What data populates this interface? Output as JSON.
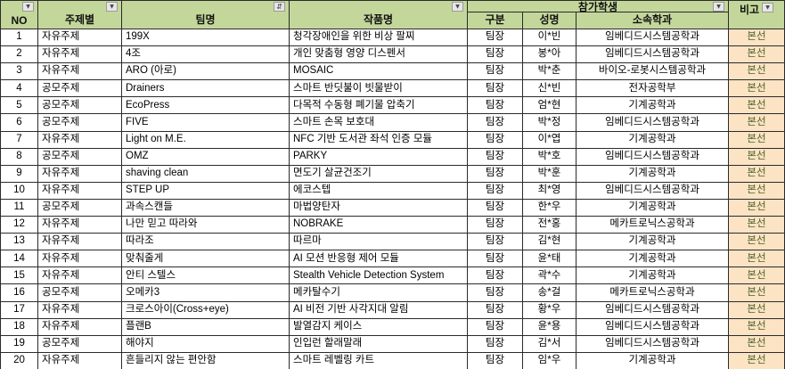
{
  "icons": {
    "filter_dropdown": "▼",
    "sort_filter": "⇵"
  },
  "colors": {
    "header_bg": "#C4D79B",
    "note_bg": "#FBE3C3",
    "note_text": "#4F6228",
    "border": "#2B2B2B"
  },
  "table": {
    "header": {
      "no": "NO",
      "topic": "주제별",
      "team": "팀명",
      "work": "작품명",
      "participants_group": "참가학생",
      "role": "구분",
      "name": "성명",
      "dept": "소속학과",
      "note": "비고"
    },
    "rows": [
      {
        "no": "1",
        "topic": "자유주제",
        "team": "199X",
        "work": "청각장애인을 위한 비상 팔찌",
        "role": "팀장",
        "name": "이*빈",
        "dept": "임베디드시스템공학과",
        "note": "본선"
      },
      {
        "no": "2",
        "topic": "자유주제",
        "team": "4조",
        "work": "개인 맞춤형 영양 디스펜서",
        "role": "팀장",
        "name": "봉*아",
        "dept": "임베디드시스템공학과",
        "note": "본선"
      },
      {
        "no": "3",
        "topic": "자유주제",
        "team": "ARO (아로)",
        "work": "MOSAIC",
        "role": "팀장",
        "name": "박*춘",
        "dept": "바이오-로봇시스템공학과",
        "note": "본선"
      },
      {
        "no": "4",
        "topic": "공모주제",
        "team": "Drainers",
        "work": "스마트 반딧불이 빗물받이",
        "role": "팀장",
        "name": "신*빈",
        "dept": "전자공학부",
        "note": "본선"
      },
      {
        "no": "5",
        "topic": "공모주제",
        "team": "EcoPress",
        "work": "다목적 수동형 폐기물 압축기",
        "role": "팀장",
        "name": "엄*현",
        "dept": "기계공학과",
        "note": "본선"
      },
      {
        "no": "6",
        "topic": "공모주제",
        "team": "FIVE",
        "work": "스마트 손목 보호대",
        "role": "팀장",
        "name": "박*정",
        "dept": "임베디드시스템공학과",
        "note": "본선"
      },
      {
        "no": "7",
        "topic": "자유주제",
        "team": "Light on M.E.",
        "work": "NFC 기반 도서관 좌석 인증 모듈",
        "role": "팀장",
        "name": "이*엽",
        "dept": "기계공학과",
        "note": "본선"
      },
      {
        "no": "8",
        "topic": "공모주제",
        "team": "OMZ",
        "work": "PARKY",
        "role": "팀장",
        "name": "박*호",
        "dept": "임베디드시스템공학과",
        "note": "본선"
      },
      {
        "no": "9",
        "topic": "자유주제",
        "team": "shaving clean",
        "work": "면도기 살균건조기",
        "role": "팀장",
        "name": "박*훈",
        "dept": "기계공학과",
        "note": "본선"
      },
      {
        "no": "10",
        "topic": "자유주제",
        "team": "STEP UP",
        "work": "에코스텝",
        "role": "팀장",
        "name": "최*영",
        "dept": "임베디드시스템공학과",
        "note": "본선"
      },
      {
        "no": "11",
        "topic": "공모주제",
        "team": "과속스캔들",
        "work": "마법양탄자",
        "role": "팀장",
        "name": "한*우",
        "dept": "기계공학과",
        "note": "본선"
      },
      {
        "no": "12",
        "topic": "자유주제",
        "team": "나만 믿고 따라와",
        "work": "NOBRAKE",
        "role": "팀장",
        "name": "전*홍",
        "dept": "메카트로닉스공학과",
        "note": "본선"
      },
      {
        "no": "13",
        "topic": "자유주제",
        "team": "따라조",
        "work": "따르마",
        "role": "팀장",
        "name": "김*현",
        "dept": "기계공학과",
        "note": "본선"
      },
      {
        "no": "14",
        "topic": "자유주제",
        "team": "맞춰줄게",
        "work": "AI 모션 반응형 제어 모듈",
        "role": "팀장",
        "name": "윤*태",
        "dept": "기계공학과",
        "note": "본선"
      },
      {
        "no": "15",
        "topic": "자유주제",
        "team": "안티 스텔스",
        "work": "Stealth Vehicle Detection System",
        "role": "팀장",
        "name": "곽*수",
        "dept": "기계공학과",
        "note": "본선"
      },
      {
        "no": "16",
        "topic": "공모주제",
        "team": "오메카3",
        "work": "메카탈수기",
        "role": "팀장",
        "name": "송*걸",
        "dept": "메카트로닉스공학과",
        "note": "본선"
      },
      {
        "no": "17",
        "topic": "자유주제",
        "team": "크로스아이(Cross+eye)",
        "work": "AI 비전 기반 사각지대 알림",
        "role": "팀장",
        "name": "황*우",
        "dept": "임베디드시스템공학과",
        "note": "본선"
      },
      {
        "no": "18",
        "topic": "자유주제",
        "team": "플랜B",
        "work": "발열감지 케이스",
        "role": "팀장",
        "name": "윤*용",
        "dept": "임베디드시스템공학과",
        "note": "본선"
      },
      {
        "no": "19",
        "topic": "공모주제",
        "team": "해야지",
        "work": "인입런 할래말래",
        "role": "팀장",
        "name": "김*서",
        "dept": "임베디드시스템공학과",
        "note": "본선"
      },
      {
        "no": "20",
        "topic": "자유주제",
        "team": "흔들리지 않는 편안함",
        "work": "스마트 레벨링 카트",
        "role": "팀장",
        "name": "임*우",
        "dept": "기계공학과",
        "note": "본선"
      }
    ]
  }
}
